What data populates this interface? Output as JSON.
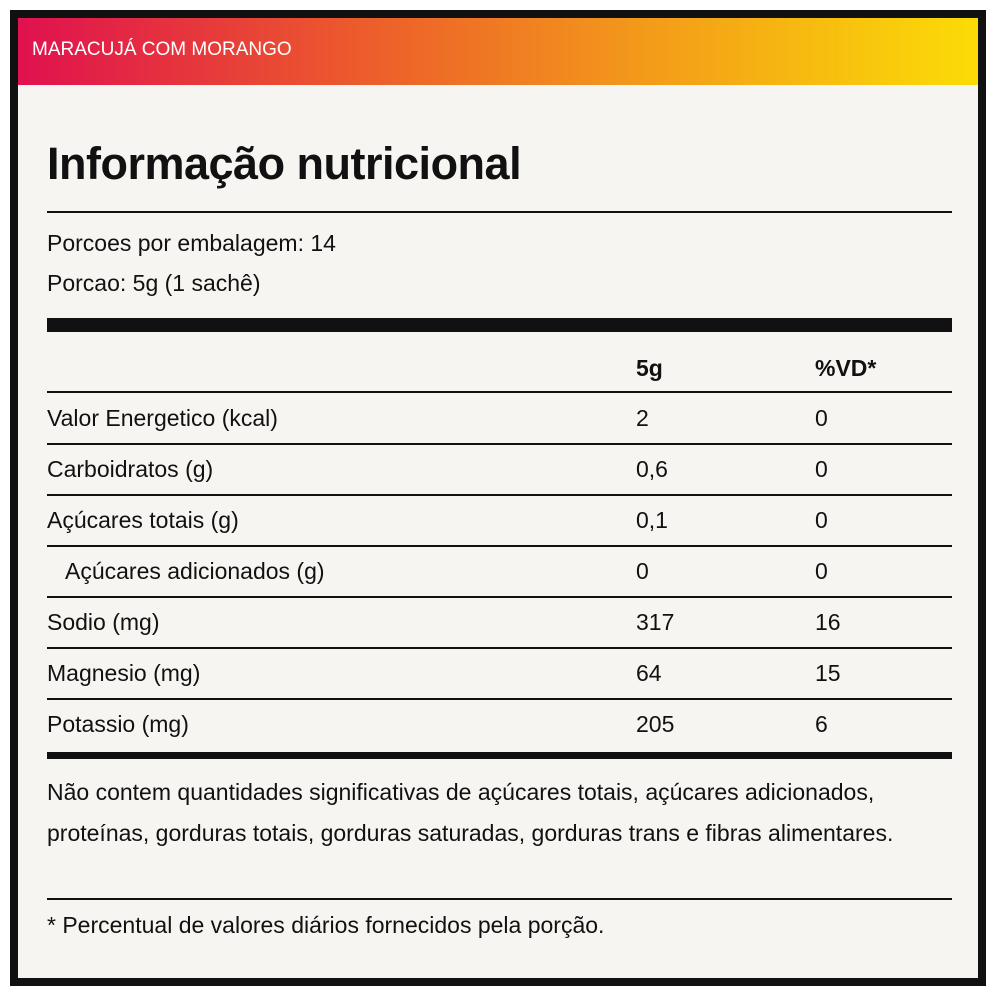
{
  "header": {
    "flavor": "MARACUJÁ COM MORANGO"
  },
  "title": "Informação nutricional",
  "servings": [
    "Porcoes por embalagem: 14",
    "Porcao: 5g (1 sachê)"
  ],
  "table": {
    "columns": [
      "5g",
      "%VD*"
    ],
    "rows": [
      {
        "name": "Valor Energetico (kcal)",
        "amount": "2",
        "dv": "0"
      },
      {
        "name": "Carboidratos (g)",
        "amount": "0,6",
        "dv": "0"
      },
      {
        "name": "Açúcares totais (g)",
        "amount": "0,1",
        "dv": "0"
      },
      {
        "name": "Açúcares adicionados (g)",
        "amount": "0",
        "dv": "0",
        "indent": true
      },
      {
        "name": "Sodio (mg)",
        "amount": "317",
        "dv": "16"
      },
      {
        "name": "Magnesio (mg)",
        "amount": "64",
        "dv": "15"
      },
      {
        "name": "Potassio (mg)",
        "amount": "205",
        "dv": "6"
      }
    ]
  },
  "notes": {
    "disclaimer": "Não contem quantidades significativas de açúcares totais, açúcares adicionados, proteínas, gorduras totais, gorduras saturadas, gorduras trans e fibras alimentares.",
    "footnote": "* Percentual de valores diários fornecidos pela porção."
  }
}
